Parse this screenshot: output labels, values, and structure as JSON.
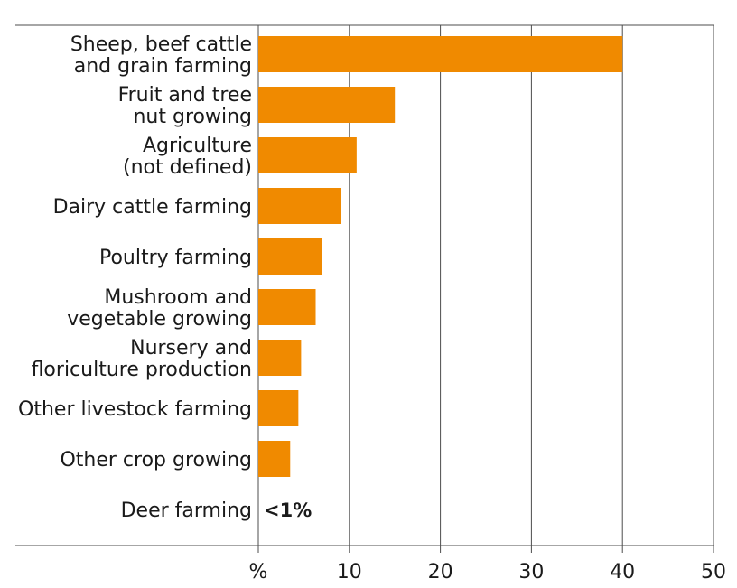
{
  "chart_data": {
    "type": "bar",
    "orientation": "horizontal",
    "categories": [
      "Sheep, beef cattle and grain farming",
      "Fruit and tree nut growing",
      "Agriculture (not defined)",
      "Dairy cattle farming",
      "Poultry farming",
      "Mushroom and vegetable growing",
      "Nursery and floriculture production",
      "Other livestock farming",
      "Other crop growing",
      "Deer farming"
    ],
    "category_label_lines": [
      [
        "Sheep, beef cattle",
        "and grain farming"
      ],
      [
        "Fruit and tree",
        "nut growing"
      ],
      [
        "Agriculture",
        "(not defined)"
      ],
      [
        "Dairy cattle farming"
      ],
      [
        "Poultry farming"
      ],
      [
        "Mushroom and",
        "vegetable growing"
      ],
      [
        "Nursery and",
        "floriculture production"
      ],
      [
        "Other livestock farming"
      ],
      [
        "Other crop growing"
      ],
      [
        "Deer farming"
      ]
    ],
    "values": [
      40,
      15,
      10.8,
      9.1,
      7,
      6.3,
      4.7,
      4.4,
      3.5,
      0
    ],
    "data_labels": [
      "",
      "",
      "",
      "",
      "",
      "",
      "",
      "",
      "",
      "<1%"
    ],
    "xlabel": "%",
    "xlim": [
      0,
      50
    ],
    "xticks": [
      10,
      20,
      30,
      40,
      50
    ],
    "bar_color": "#F08A00",
    "grid": true
  }
}
